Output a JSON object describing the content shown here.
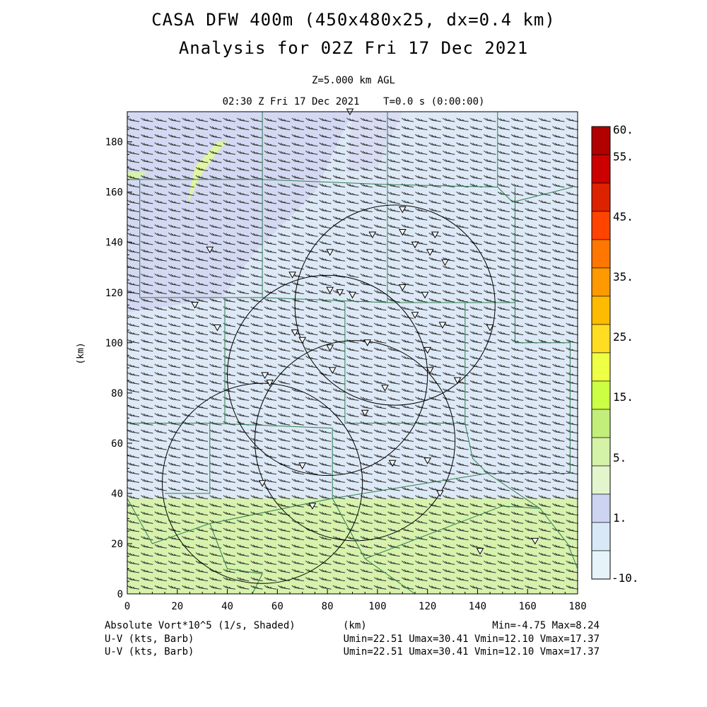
{
  "title_line1": "CASA DFW 400m (450x480x25, dx=0.4 km)",
  "title_line2": "Analysis for 02Z Fri 17 Dec 2021",
  "level_label": "Z=5.000 km AGL",
  "time_label": "02:30 Z Fri 17 Dec 2021    T=0.0 s (0:00:00)",
  "axes": {
    "x_label": "(km)",
    "y_label": "(km)",
    "x_ticks": [
      "0",
      "20",
      "40",
      "60",
      "80",
      "100",
      "120",
      "140",
      "160",
      "180"
    ],
    "y_ticks": [
      "0",
      "20",
      "40",
      "60",
      "80",
      "100",
      "120",
      "140",
      "160",
      "180"
    ],
    "xlim": [
      0,
      180
    ],
    "ylim": [
      0,
      192
    ]
  },
  "colorbar": {
    "labels": [
      "60.",
      "55.",
      "45.",
      "35.",
      "25.",
      "15.",
      "5.",
      "1.",
      "-10."
    ],
    "colors": [
      "#b00000",
      "#cc0000",
      "#dd2200",
      "#ff4400",
      "#ff7700",
      "#ff9900",
      "#ffbb00",
      "#ffdd22",
      "#eeff44",
      "#ccff44",
      "#c2ee7a",
      "#d4f2a8",
      "#e2f5cc",
      "#ccd4f2",
      "#d8e8f6",
      "#e6f4fa"
    ]
  },
  "footer": {
    "field_label": "Absolute Vort*10^5 (1/s, Shaded)",
    "x_unit": "(km)",
    "minmax": "Min=-4.75 Max=8.24",
    "wind1_label": "U-V (kts, Barb)",
    "wind1_stats": "Umin=22.51 Umax=30.41 Vmin=12.10 Vmax=17.37",
    "wind2_label": "U-V (kts, Barb)",
    "wind2_stats": "Umin=22.51 Umax=30.41 Vmin=12.10 Vmax=17.37"
  },
  "map_data": {
    "field": "absolute vorticity",
    "shading_bands": [
      {
        "name": "south-green",
        "y_range_km": [
          0,
          38
        ],
        "value_class": "5-10"
      },
      {
        "name": "north-lightblue",
        "y_range_km": [
          38,
          192
        ],
        "value_class": "-10-1"
      },
      {
        "name": "northwest-lavender",
        "y_range_km": [
          115,
          192
        ],
        "value_class": "1-5"
      }
    ],
    "radar_rings": [
      {
        "center_km": [
          107,
          115
        ],
        "radius_km": 40
      },
      {
        "center_km": [
          80,
          87
        ],
        "radius_km": 40
      },
      {
        "center_km": [
          91,
          61
        ],
        "radius_km": 40
      },
      {
        "center_km": [
          54,
          44
        ],
        "radius_km": 40
      }
    ],
    "stations_km": [
      [
        89,
        192
      ],
      [
        110,
        153
      ],
      [
        98,
        143
      ],
      [
        110,
        144
      ],
      [
        115,
        139
      ],
      [
        123,
        143
      ],
      [
        121,
        136
      ],
      [
        127,
        132
      ],
      [
        33,
        137
      ],
      [
        81,
        136
      ],
      [
        66,
        127
      ],
      [
        110,
        122
      ],
      [
        81,
        121
      ],
      [
        85,
        120
      ],
      [
        90,
        119
      ],
      [
        119,
        119
      ],
      [
        27,
        115
      ],
      [
        115,
        111
      ],
      [
        126,
        107
      ],
      [
        145,
        106
      ],
      [
        36,
        106
      ],
      [
        67,
        104
      ],
      [
        70,
        101
      ],
      [
        96,
        100
      ],
      [
        81,
        98
      ],
      [
        120,
        97
      ],
      [
        82,
        89
      ],
      [
        121,
        89
      ],
      [
        132,
        85
      ],
      [
        55,
        87
      ],
      [
        57,
        84
      ],
      [
        103,
        82
      ],
      [
        95,
        72
      ],
      [
        70,
        51
      ],
      [
        106,
        52
      ],
      [
        120,
        53
      ],
      [
        54,
        44
      ],
      [
        125,
        40
      ],
      [
        74,
        35
      ],
      [
        141,
        17
      ],
      [
        163,
        21
      ]
    ]
  }
}
